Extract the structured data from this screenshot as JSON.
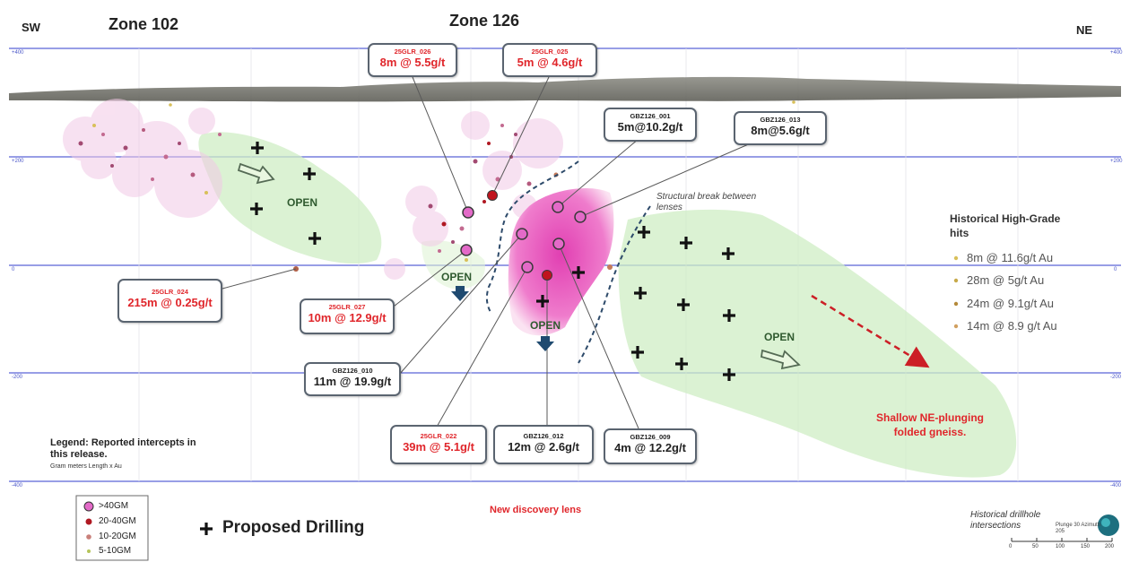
{
  "header": {
    "sw": "SW",
    "ne": "NE",
    "zone_102": "Zone 102",
    "zone_126": "Zone 126"
  },
  "elevations": [
    "+400",
    "+200",
    "0",
    "-200",
    "-400"
  ],
  "intercepts": [
    {
      "id": "25GLR_026",
      "value": "8m @ 5.5g/t",
      "style": "red"
    },
    {
      "id": "25GLR_025",
      "value": "5m @ 4.6g/t",
      "style": "red"
    },
    {
      "id": "GBZ126_001",
      "value": "5m@10.2g/t",
      "style": "black"
    },
    {
      "id": "GBZ126_013",
      "value": "8m@5.6g/t",
      "style": "black"
    },
    {
      "id": "25GLR_024",
      "value": "215m @ 0.25g/t",
      "style": "red"
    },
    {
      "id": "25GLR_027",
      "value": "10m @ 12.9g/t",
      "style": "red"
    },
    {
      "id": "GBZ126_010",
      "value": "11m @ 19.9g/t",
      "style": "black"
    },
    {
      "id": "25GLR_022",
      "value": "39m @ 5.1g/t",
      "style": "red"
    },
    {
      "id": "GBZ126_012",
      "value": "12m @ 2.6g/t",
      "style": "black"
    },
    {
      "id": "GBZ126_009",
      "value": "4m @ 12.2g/t",
      "style": "black"
    }
  ],
  "open_labels": [
    "OPEN",
    "OPEN",
    "OPEN",
    "OPEN"
  ],
  "annotations": {
    "structural_break": "Structural break between lenses",
    "shallow_ne": "Shallow NE-plunging folded gneiss.",
    "new_discovery": "New discovery lens",
    "historical_intersections": "Historical drillhole intersections",
    "scale_note": "Plunge 30 Azimuth 205"
  },
  "historical": {
    "title": "Historical High-Grade hits",
    "items": [
      {
        "label": "8m @ 11.6g/t Au",
        "color": "#d8c05a"
      },
      {
        "label": "28m @ 5g/t Au",
        "color": "#c7a94a"
      },
      {
        "label": "24m @ 9.1g/t Au",
        "color": "#b48a3a"
      },
      {
        "label": "14m @ 8.9 g/t Au",
        "color": "#d1a060"
      }
    ]
  },
  "legend": {
    "title": "Legend: Reported intercepts in this release.",
    "subtitle": "Gram meters Length x Au",
    "items": [
      {
        "label": ">40GM",
        "color": "#e36ac8"
      },
      {
        "label": "20-40GM",
        "color": "#b01822"
      },
      {
        "label": "10-20GM",
        "color": "#c9807a"
      },
      {
        "label": "5-10GM",
        "color": "#b5c45a"
      }
    ],
    "proposed": "Proposed Drilling"
  },
  "scale_bar": {
    "ticks": [
      "0",
      "50",
      "100",
      "150",
      "200"
    ]
  }
}
